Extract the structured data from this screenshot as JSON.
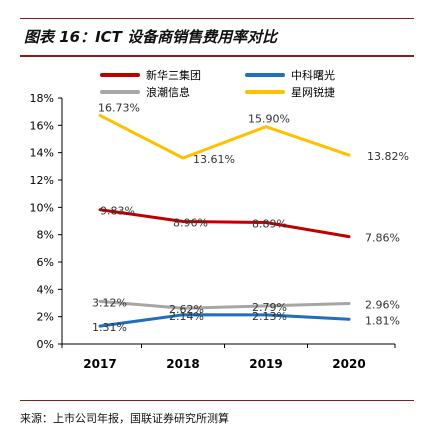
{
  "figure_title": "图表 16：ICT 设备商销售费用率对比",
  "source_note": "来源：上市公司年报，国联证券研究所测算",
  "chart_data": {
    "type": "line",
    "x": [
      "2017",
      "2018",
      "2019",
      "2020"
    ],
    "ylim": [
      0,
      18
    ],
    "ytick_step": 2,
    "ytick_labels": [
      "0%",
      "2%",
      "4%",
      "6%",
      "8%",
      "10%",
      "12%",
      "14%",
      "16%",
      "18%"
    ],
    "grid": false,
    "legend_position": "top",
    "series": [
      {
        "name": "新华三集团",
        "color": "#c00000",
        "values": [
          9.83,
          8.96,
          8.89,
          7.86
        ],
        "labels": [
          "9.83%",
          "8.96%",
          "8.89%",
          "7.86%"
        ]
      },
      {
        "name": "中科曙光",
        "color": "#1f6fbf",
        "values": [
          1.31,
          2.14,
          2.13,
          1.81
        ],
        "labels": [
          "1.31%",
          "2.14%",
          "2.13%",
          "1.81%"
        ]
      },
      {
        "name": "浪潮信息",
        "color": "#a6a6a6",
        "values": [
          3.12,
          2.62,
          2.79,
          2.96
        ],
        "labels": [
          "3.12%",
          "2.62%",
          "2.79%",
          "2.96%"
        ]
      },
      {
        "name": "星网锐捷",
        "color": "#ffc000",
        "values": [
          16.73,
          13.61,
          15.9,
          13.82
        ],
        "labels": [
          "16.73%",
          "13.61%",
          "15.90%",
          "13.82%"
        ]
      }
    ]
  }
}
